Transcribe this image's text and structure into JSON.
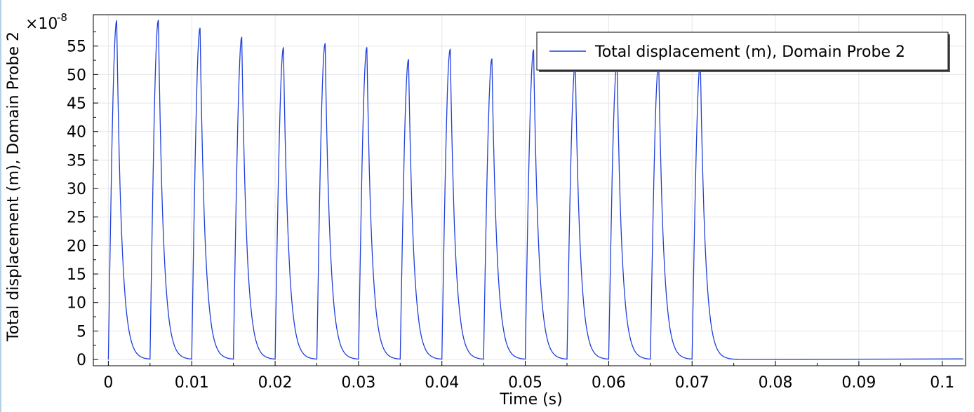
{
  "chart_data": {
    "type": "line",
    "title": "",
    "xlabel": "Time (s)",
    "ylabel": "Total displacement (m), Domain Probe 2",
    "y_multiplier_label": "×10",
    "y_multiplier_exponent": "-8",
    "xlim": [
      -0.0018,
      0.1028
    ],
    "ylim": [
      -1.1,
      60.5
    ],
    "x_ticks": [
      0,
      0.01,
      0.02,
      0.03,
      0.04,
      0.05,
      0.06,
      0.07,
      0.08,
      0.09,
      0.1
    ],
    "x_tick_labels": [
      "0",
      "0.01",
      "0.02",
      "0.03",
      "0.04",
      "0.05",
      "0.06",
      "0.07",
      "0.08",
      "0.09",
      "0.1"
    ],
    "y_ticks": [
      0,
      5,
      10,
      15,
      20,
      25,
      30,
      35,
      40,
      45,
      50,
      55
    ],
    "y_tick_labels": [
      "0",
      "5",
      "10",
      "15",
      "20",
      "25",
      "30",
      "35",
      "40",
      "45",
      "50",
      "55"
    ],
    "grid": true,
    "legend_position": "top-right",
    "series": [
      {
        "name": "Total displacement (m), Domain Probe 2",
        "color": "#1f3fdb",
        "pulses": {
          "period": 0.005,
          "rise_duration": 0.001,
          "decay_time_constant": 0.0006,
          "peaks_x": [
            0.001,
            0.006,
            0.011,
            0.016,
            0.021,
            0.026,
            0.031,
            0.036,
            0.041,
            0.046,
            0.051,
            0.056,
            0.061,
            0.066,
            0.071
          ],
          "peaks_y": [
            59.5,
            59.6,
            58.2,
            56.6,
            54.8,
            55.5,
            54.8,
            52.7,
            54.5,
            52.8,
            54.4,
            52.0,
            52.0,
            52.0,
            52.0
          ],
          "final_decay_end_x": 0.0765,
          "tail_end_x": 0.1025,
          "tail_end_y": 0.1
        }
      }
    ]
  }
}
